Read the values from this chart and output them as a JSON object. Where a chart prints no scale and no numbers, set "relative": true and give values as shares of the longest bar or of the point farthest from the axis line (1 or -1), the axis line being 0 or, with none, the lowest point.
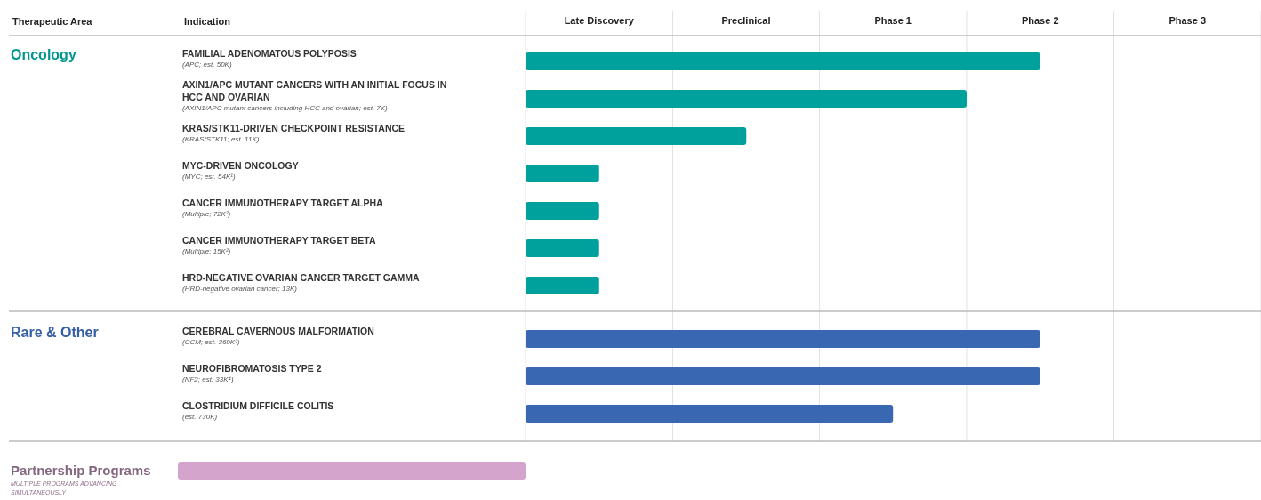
{
  "chart_data": [
    {
      "type": "bar",
      "orientation": "horizontal",
      "relative": true,
      "categories": [
        "FAMILIAL ADENOMATOUS POLYPOSIS\n(APC; est. 50K)",
        "AXIN1/APC MUTANT CANCERS WITH AN INITIAL FOCUS IN HCC AND OVARIAN\n(AXIN1/APC mutant cancers including HCC and ovarian; est. 7K)",
        "KRAS/STK11-DRIVEN CHECKPOINT RESISTANCE\n(KRAS/STK11; est. 11K)",
        "MYC-DRIVEN ONCOLOGY\n(MYC; est. 54K¹)",
        "CANCER IMMUNOTHERAPY TARGET ALPHA\n(Multiple; 72K²)",
        "CANCER IMMUNOTHERAPY TARGET BETA\n(Multiple; 15K²)",
        "HRD-NEGATIVE OVARIAN CANCER TARGET GAMMA\n(HRD-negative ovarian cancer; 13K)",
        "CEREBRAL CAVERNOUS MALFORMATION\n(CCM; est. 360K³)",
        "NEUROFIBROMATOSIS TYPE 2\n(NF2; est. 33K⁴)",
        "CLOSTRIDIUM DIFFICILE COLITIS\n(est. 730K)"
      ],
      "values": [
        1,
        0.857,
        0.429,
        0.143,
        0.143,
        0.143,
        0.143,
        1,
        1,
        0.714
      ],
      "colors": [
        "#00a19c",
        "#00a19c",
        "#00a19c",
        "#00a19c",
        "#00a19c",
        "#00a19c",
        "#00a19c",
        "#3a67b1",
        "#3a67b1",
        "#3a67b1"
      ],
      "ref_lines": [
        {
          "axis": "x",
          "value": 0,
          "color": "#e2e2e2"
        },
        {
          "axis": "x",
          "value": 0.286,
          "color": "#e2e2e2"
        },
        {
          "axis": "x",
          "value": 0.571,
          "color": "#e2e2e2"
        },
        {
          "axis": "x",
          "value": 0.857,
          "color": "#e2e2e2"
        },
        {
          "axis": "x",
          "value": 1.143,
          "color": "#e2e2e2"
        },
        {
          "axis": "x",
          "value": 1.429,
          "color": "#e2e2e2"
        }
      ],
      "annotations": [
        "Therapeutic Area",
        "Indication",
        "Late Discovery",
        "Preclinical",
        "Phase 1",
        "Phase 2",
        "Phase 3",
        "Oncology",
        "Rare & Other"
      ]
    },
    {
      "type": "bar",
      "orientation": "horizontal",
      "relative": true,
      "categories": [
        "Partnership Programs\nMULTIPLE PROGRAMS ADVANCING SIMULTANEOUSLY"
      ],
      "values": [
        1
      ],
      "colors": [
        "#d4a4cc"
      ]
    }
  ]
}
